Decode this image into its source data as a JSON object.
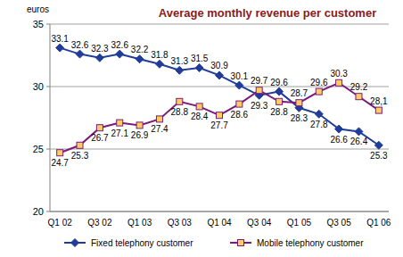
{
  "chart_data": {
    "type": "line",
    "title": "Average monthly revenue per customer",
    "y_label": "euros",
    "categories": [
      "Q1 02",
      null,
      "Q3 02",
      null,
      "Q1 03",
      null,
      "Q3 03",
      null,
      "Q1 04",
      null,
      "Q3 04",
      null,
      "Q1 05",
      null,
      "Q3 05",
      null,
      "Q1 06"
    ],
    "series": [
      {
        "name": "Fixed telephony customer",
        "color": "#1f3c99",
        "marker": "diamond",
        "values": [
          33.1,
          32.6,
          32.3,
          32.6,
          32.2,
          31.8,
          31.3,
          31.5,
          30.9,
          30.1,
          29.3,
          29.6,
          28.3,
          27.8,
          26.6,
          26.4,
          25.3
        ]
      },
      {
        "name": "Mobile telephony customer",
        "color": "#7a1a7a",
        "marker": "square",
        "values": [
          24.7,
          25.3,
          26.7,
          27.1,
          26.9,
          27.4,
          28.8,
          28.4,
          27.7,
          28.6,
          29.7,
          28.8,
          28.7,
          29.6,
          30.3,
          29.2,
          28.1
        ],
        "value_labels": [
          "24.7",
          "25.3",
          "26.7",
          "27.1",
          "26.9",
          "27.4",
          "28.8",
          "28.4",
          "27.7",
          "28.6",
          "29.7",
          "28.8",
          "28.7",
          "29.6",
          "30.3",
          "29.2",
          "28,1"
        ]
      }
    ],
    "ylim": [
      20,
      35
    ],
    "yticks": [
      20,
      25,
      30,
      35
    ],
    "grid": true,
    "legend": "bottom",
    "data_labels": true
  }
}
